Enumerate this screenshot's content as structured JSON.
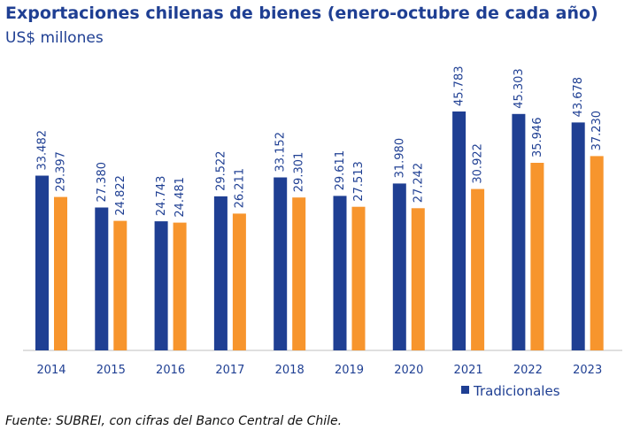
{
  "chart_data": {
    "type": "bar",
    "title": "Exportaciones chilenas de bienes (enero-octubre de cada año)",
    "subtitle": "US$ millones",
    "categories": [
      "2014",
      "2015",
      "2016",
      "2017",
      "2018",
      "2019",
      "2020",
      "2021",
      "2022",
      "2023"
    ],
    "series": [
      {
        "name": "Tradicionales",
        "color": "#1f3f93",
        "values": [
          33482,
          27380,
          24743,
          29522,
          33152,
          29611,
          31980,
          45783,
          45303,
          43678
        ],
        "labels": [
          "33.482",
          "27.380",
          "24.743",
          "29.522",
          "33.152",
          "29.611",
          "31.980",
          "45.783",
          "45.303",
          "43.678"
        ]
      },
      {
        "name": "",
        "color": "#f7952d",
        "values": [
          29397,
          24822,
          24481,
          26211,
          29301,
          27513,
          27242,
          30922,
          35946,
          37230
        ],
        "labels": [
          "29.397",
          "24.822",
          "24.481",
          "26.211",
          "29.301",
          "27.513",
          "27.242",
          "30.922",
          "35.946",
          "37.230"
        ]
      }
    ],
    "ylim": [
      0,
      50000
    ],
    "grid": false,
    "legend_position": "bottom-right",
    "source": "Fuente: SUBREI, con cifras del Banco Central de Chile."
  }
}
